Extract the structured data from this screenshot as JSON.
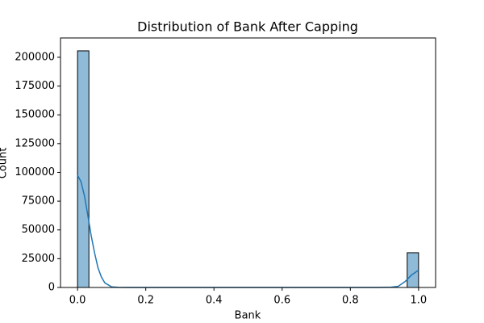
{
  "chart_data": {
    "type": "histogram",
    "title": "Distribution of Bank After Capping",
    "x_label": "Bank",
    "y_label": "Count",
    "bins": [
      0,
      0.0333,
      0.0667,
      0.1,
      0.1333,
      0.1667,
      0.2,
      0.2333,
      0.2667,
      0.3,
      0.3333,
      0.3667,
      0.4,
      0.4333,
      0.4667,
      0.5,
      0.5333,
      0.5667,
      0.6,
      0.6333,
      0.6667,
      0.7,
      0.7333,
      0.7667,
      0.8,
      0.8333,
      0.8667,
      0.9,
      0.9333,
      0.9667,
      1
    ],
    "values": [
      205600,
      0,
      0,
      0,
      0,
      0,
      0,
      0,
      0,
      0,
      0,
      0,
      0,
      0,
      0,
      0,
      0,
      0,
      0,
      0,
      0,
      0,
      0,
      0,
      0,
      0,
      0,
      0,
      0,
      30200
    ],
    "color": "rgba(31,119,180,0.5)",
    "edge_color": "#000000",
    "kde": {
      "color": "#1f77b4",
      "x": [
        0,
        0.01,
        0.02,
        0.03,
        0.04,
        0.05,
        0.06,
        0.07,
        0.08,
        0.1,
        0.12,
        0.15,
        0.2,
        0.5,
        0.8,
        0.88,
        0.92,
        0.94,
        0.96,
        0.98,
        1
      ],
      "values": [
        97500,
        92000,
        80000,
        63000,
        45000,
        30000,
        17000,
        9000,
        4000,
        500,
        50,
        0,
        0,
        0,
        0,
        0,
        300,
        1000,
        5000,
        11000,
        15000
      ]
    },
    "xlim": [
      -0.05,
      1.05
    ],
    "ylim": [
      0,
      216800
    ],
    "xticks": [
      {
        "value": 0,
        "label": "0.0"
      },
      {
        "value": 0.2,
        "label": "0.2"
      },
      {
        "value": 0.4,
        "label": "0.4"
      },
      {
        "value": 0.6,
        "label": "0.6"
      },
      {
        "value": 0.8,
        "label": "0.8"
      },
      {
        "value": 1,
        "label": "1.0"
      }
    ],
    "yticks": [
      0,
      25000,
      50000,
      75000,
      100000,
      125000,
      150000,
      175000,
      200000
    ]
  }
}
